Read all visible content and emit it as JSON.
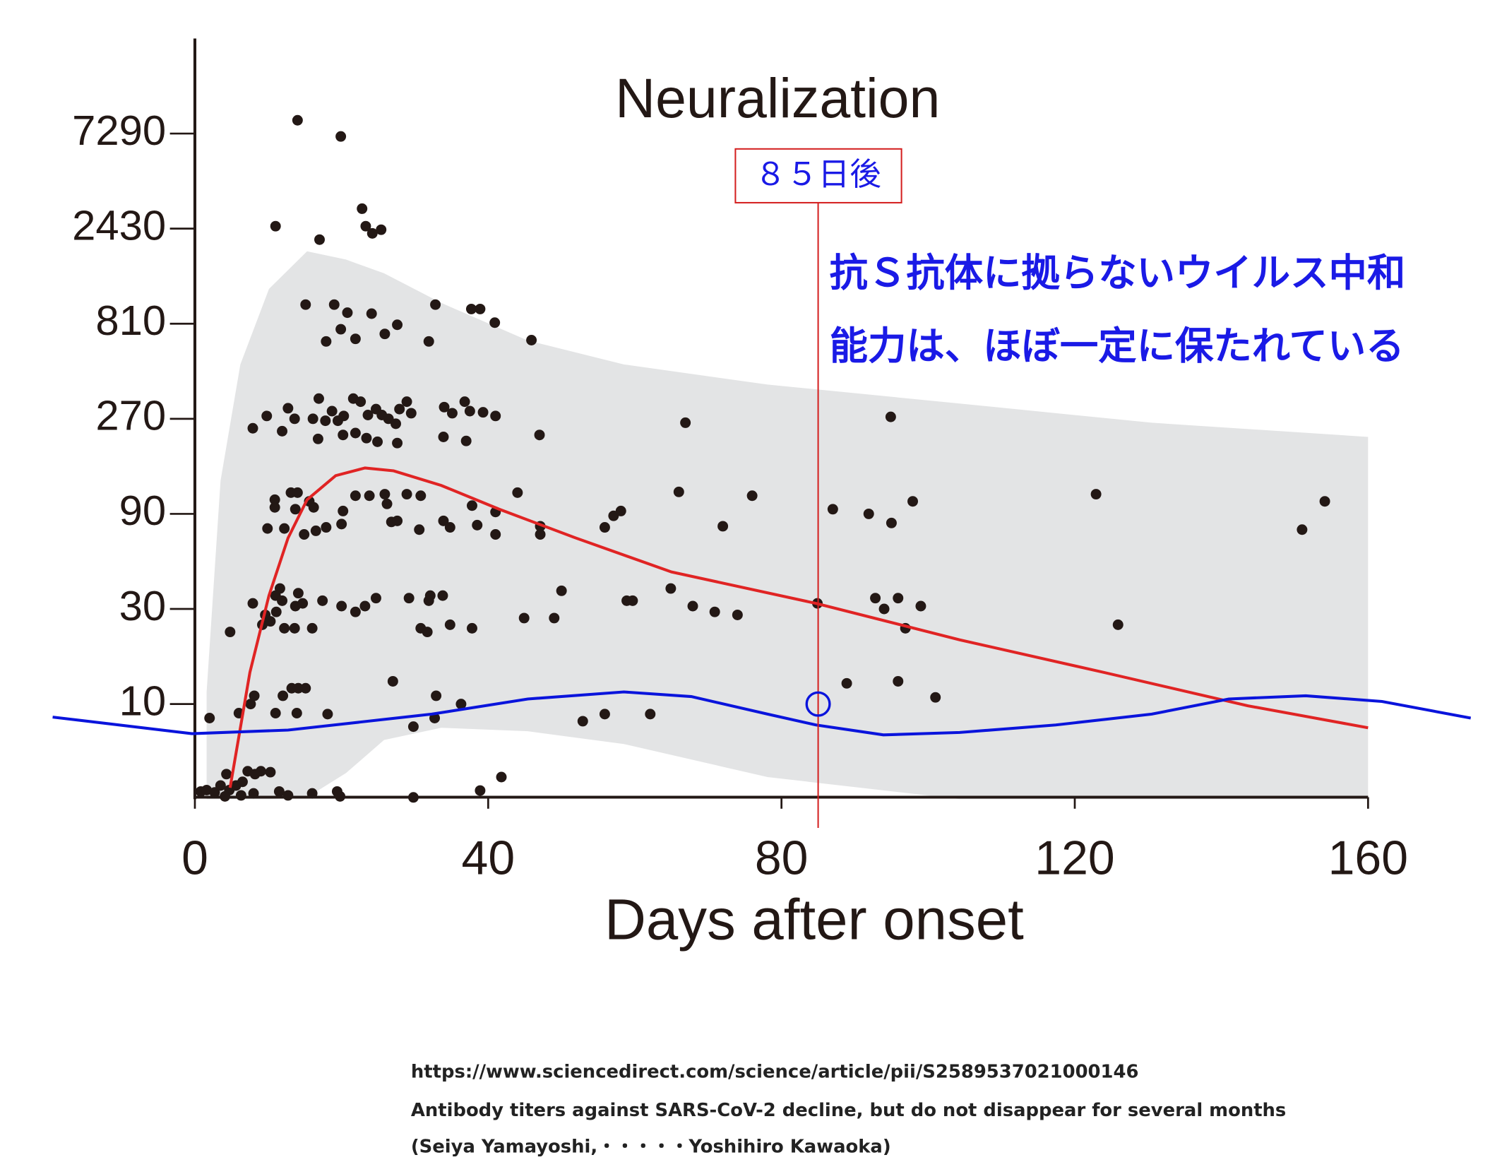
{
  "chart_data": {
    "type": "scatter",
    "title": "Neuralization",
    "x_label": "Days after onset",
    "xlim": [
      0,
      160
    ],
    "ylim": [
      3.333,
      21870
    ],
    "log_y": true,
    "xticks": [
      0,
      40,
      80,
      120,
      160
    ],
    "yticks": [
      10,
      30,
      90,
      270,
      810,
      2430,
      7290
    ],
    "color": "#231815",
    "x": [
      14.0,
      19.9,
      22.8,
      23.3,
      24.2,
      25.4,
      11.0,
      17.0,
      15.1,
      19.0,
      20.8,
      24.1,
      19.9,
      21.9,
      17.9,
      25.9,
      27.6,
      32.8,
      37.7,
      38.9,
      40.9,
      31.9,
      45.9,
      7.9,
      9.8,
      11.9,
      12.7,
      13.6,
      16.1,
      16.9,
      17.8,
      18.7,
      19.5,
      20.3,
      21.6,
      22.6,
      23.6,
      24.7,
      25.5,
      26.4,
      27.4,
      27.9,
      28.9,
      29.5,
      34.0,
      35.1,
      36.8,
      37.5,
      39.3,
      41.0,
      16.8,
      20.2,
      21.9,
      23.4,
      24.9,
      27.6,
      33.9,
      37.0,
      47.0,
      66.9,
      94.9,
      10.9,
      10.9,
      13.1,
      14.0,
      13.7,
      15.6,
      16.2,
      20.2,
      21.9,
      23.8,
      25.9,
      26.2,
      28.9,
      30.8,
      37.8,
      41.0,
      44.0,
      66.0,
      76.0,
      87.0,
      97.9,
      122.9,
      154.1,
      9.9,
      12.2,
      14.9,
      16.5,
      17.9,
      20.0,
      26.8,
      27.6,
      30.6,
      33.9,
      34.8,
      38.5,
      41.0,
      47.1,
      47.1,
      55.9,
      57.1,
      58.1,
      72.0,
      91.9,
      95.0,
      151.0,
      11.6,
      11.0,
      11.9,
      14.1,
      7.9,
      9.6,
      11.1,
      13.7,
      14.7,
      17.4,
      20.0,
      21.9,
      23.2,
      24.7,
      29.2,
      32.1,
      33.8,
      31.9,
      34.8,
      30.8,
      31.7,
      37.8,
      44.9,
      49.0,
      50.0,
      58.9,
      59.7,
      64.9,
      67.9,
      70.9,
      74.0,
      84.9,
      92.8,
      94.0,
      95.9,
      99.0,
      96.9,
      125.9,
      4.8,
      9.2,
      10.3,
      12.2,
      13.6,
      16.0,
      8.1,
      7.6,
      6.0,
      12.0,
      13.2,
      14.1,
      15.1,
      11.0,
      13.9,
      18.1,
      27.0,
      32.9,
      36.3,
      29.8,
      32.7,
      52.9,
      55.9,
      62.1,
      88.9,
      95.9,
      101.0,
      2.0,
      0.8,
      1.6,
      2.7,
      3.5,
      4.3,
      4.7,
      5.6,
      6.5,
      7.2,
      8.2,
      9.0,
      10.3,
      8.0,
      6.3,
      4.1,
      11.5,
      12.7,
      16.0,
      19.4,
      19.8,
      29.8,
      38.9,
      41.8
    ],
    "values": [
      8500,
      7050,
      3060,
      2500,
      2300,
      2400,
      2500,
      2140,
      1010,
      1010,
      920,
      910,
      760,
      680,
      660,
      720,
      800,
      1010,
      960,
      960,
      820,
      660,
      670,
      242,
      279,
      234,
      305,
      270,
      270,
      341,
      264,
      295,
      264,
      279,
      341,
      329,
      282,
      302,
      282,
      270,
      255,
      302,
      329,
      288,
      309,
      288,
      329,
      295,
      291,
      279,
      214,
      224,
      229,
      216,
      207,
      204,
      219,
      209,
      224,
      258,
      276,
      106,
      97,
      115,
      115,
      95,
      104,
      97,
      93,
      111,
      111,
      113,
      101,
      113,
      111,
      99,
      92,
      115,
      116,
      111,
      95,
      104,
      113,
      104,
      76,
      76,
      71,
      74,
      77,
      80,
      82,
      83,
      75,
      83,
      77,
      79,
      71,
      78,
      71,
      77,
      88,
      93,
      78,
      90,
      81,
      75,
      38,
      35,
      33,
      36,
      32,
      28,
      29,
      31,
      32,
      33,
      31,
      29,
      31,
      34,
      34,
      35,
      35,
      33,
      25,
      24,
      23,
      24,
      27,
      27,
      37,
      33,
      33,
      38,
      31,
      29,
      28,
      32,
      34,
      30,
      34,
      31,
      24,
      25,
      23,
      25,
      26,
      24,
      24,
      24,
      11,
      10,
      9,
      11,
      12,
      12,
      12,
      9,
      9,
      8.9,
      13,
      11,
      10,
      7.7,
      8.5,
      8.2,
      8.9,
      8.9,
      12.7,
      13,
      10.8,
      8.5,
      3.64,
      3.7,
      3.6,
      3.9,
      4.45,
      3.7,
      3.9,
      4.07,
      4.6,
      4.45,
      4.6,
      4.55,
      3.56,
      3.48,
      3.44,
      3.64,
      3.48,
      3.56,
      3.64,
      3.44,
      3.4,
      3.68,
      4.3
    ],
    "band": {
      "color": "#e3e4e5",
      "x": [
        1.6,
        3.5,
        6.2,
        10.1,
        15.3,
        20.6,
        25.8,
        33.6,
        45.4,
        58.5,
        78.1,
        104.3,
        130.5,
        160
      ],
      "upper": [
        11.5,
        132,
        506,
        1210,
        1870,
        1700,
        1450,
        1030,
        667,
        506,
        401,
        322,
        258,
        219
      ],
      "lower": [
        3.333,
        3.333,
        3.333,
        3.333,
        3.4,
        4.5,
        6.6,
        7.6,
        7.3,
        6.3,
        4.3,
        3.333,
        3.333,
        3.333
      ]
    },
    "lines": [
      {
        "color": "#e02424",
        "x": [
          4.8,
          7.5,
          10.1,
          12.7,
          15.3,
          19.2,
          23.2,
          27.1,
          33.6,
          41.5,
          52,
          65,
          84.7,
          104.3,
          124,
          143.6,
          160
        ],
        "values": [
          3.8,
          14.4,
          35,
          68,
          106,
          140,
          153,
          148,
          125,
          95,
          68,
          46,
          32,
          21,
          14.4,
          9.8,
          7.6
        ]
      },
      {
        "color": "#0a14dc",
        "x": [
          -19.4,
          -0.4,
          12.7,
          32.3,
          45.4,
          58.5,
          67.7,
          78.1,
          84.7,
          93.9,
          104.3,
          117.4,
          130.5,
          141,
          151.5,
          161.9,
          174
        ],
        "values": [
          8.6,
          7.1,
          7.4,
          8.9,
          10.6,
          11.5,
          10.9,
          8.9,
          7.85,
          7.0,
          7.2,
          7.85,
          8.9,
          10.6,
          11.0,
          10.3,
          8.5
        ]
      }
    ],
    "annotation_label": "８５日後",
    "marker_x": 85,
    "marker_y": 10,
    "note_lines": [
      "抗Ｓ抗体に拠らないウイルス中和",
      "能力は、ほぼ一定に保たれている"
    ]
  },
  "source": {
    "url": "https://www.sciencedirect.com/science/article/pii/S2589537021000146",
    "title": "Antibody titers against SARS-CoV-2 decline, but do not disappear for several months",
    "authors": "(Seiya Yamayoshi,・・・・・Yoshihiro Kawaoka)"
  }
}
